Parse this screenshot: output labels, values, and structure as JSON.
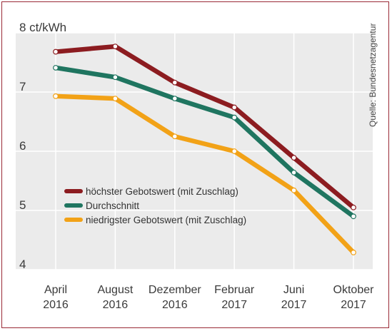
{
  "chart_data": {
    "type": "line",
    "categories": [
      [
        "April",
        "2016"
      ],
      [
        "August",
        "2016"
      ],
      [
        "Dezember",
        "2016"
      ],
      [
        "Februar",
        "2017"
      ],
      [
        "Juni",
        "2017"
      ],
      [
        "Oktober",
        "2017"
      ]
    ],
    "yticks": [
      "4",
      "5",
      "6",
      "7",
      "8 ct/kWh"
    ],
    "ylim": [
      4,
      8
    ],
    "grid": true,
    "legend_position": "center-left",
    "source": "Quelle: Bundesnetzagentur",
    "series": [
      {
        "name": "höchster Gebotswert (mit Zuschlag)",
        "color": "#8c1c20",
        "values": [
          7.68,
          7.77,
          7.16,
          6.74,
          5.89,
          5.05
        ]
      },
      {
        "name": "Durchschnitt",
        "color": "#1f7560",
        "values": [
          7.41,
          7.25,
          6.89,
          6.57,
          5.64,
          4.9
        ]
      },
      {
        "name": "niedrigster Gebotswert (mit Zuschlag)",
        "color": "#f2a217",
        "values": [
          6.93,
          6.89,
          6.25,
          6.0,
          5.34,
          4.29
        ]
      }
    ]
  }
}
